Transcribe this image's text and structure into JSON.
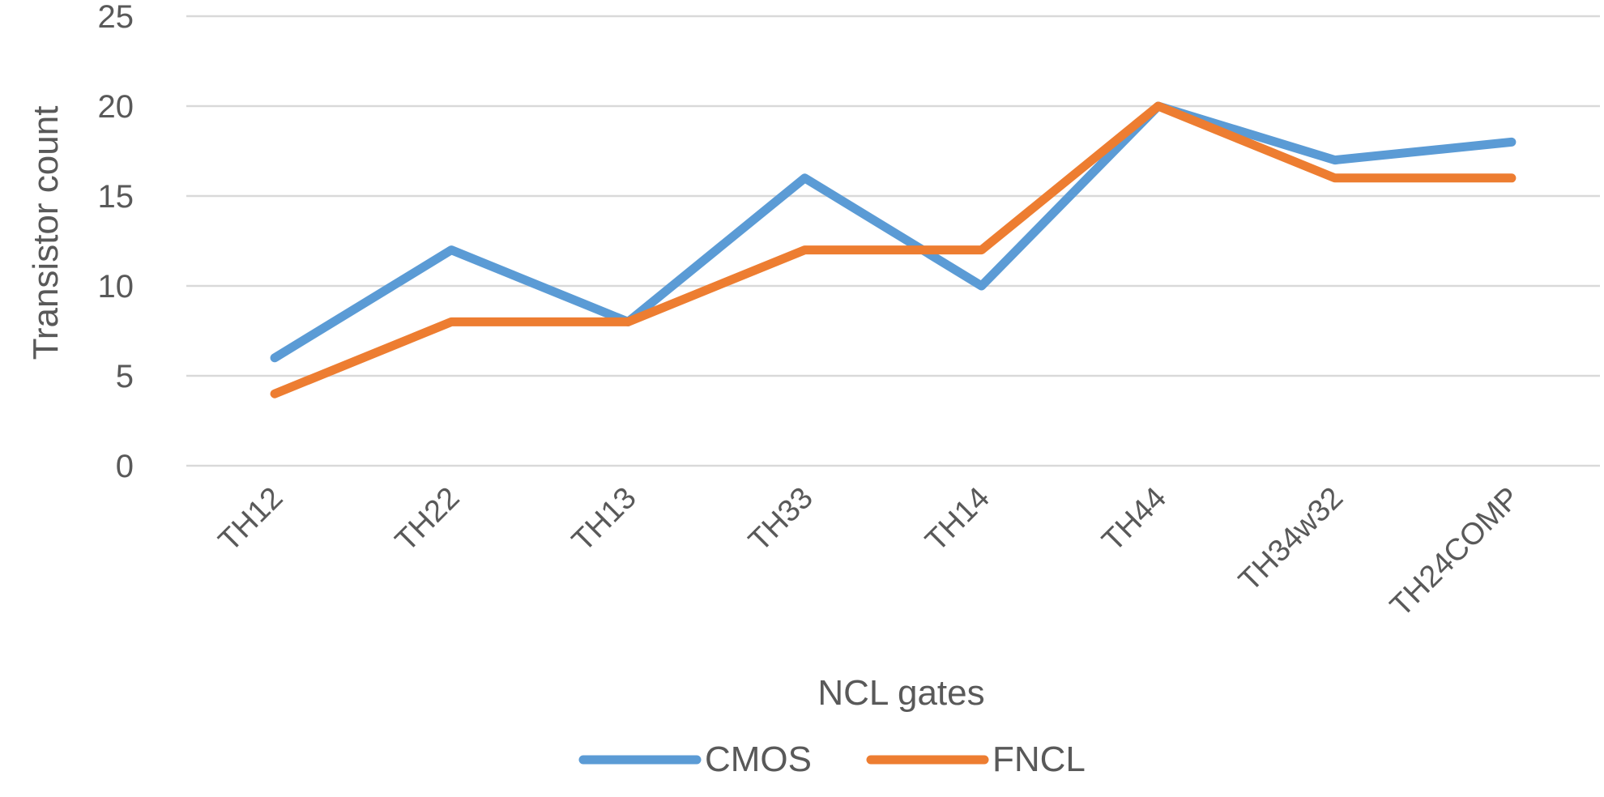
{
  "chart_data": {
    "type": "line",
    "title": "",
    "xlabel": "NCL gates",
    "ylabel": "Transistor count",
    "categories": [
      "TH12",
      "TH22",
      "TH13",
      "TH33",
      "TH14",
      "TH44",
      "TH34w32",
      "TH24COMP"
    ],
    "series": [
      {
        "name": "CMOS",
        "color": "#5b9bd5",
        "values": [
          6,
          12,
          8,
          16,
          10,
          20,
          17,
          18
        ]
      },
      {
        "name": "FNCL",
        "color": "#ed7d31",
        "values": [
          4,
          8,
          8,
          12,
          12,
          20,
          16,
          16
        ]
      }
    ],
    "ylim": [
      0,
      25
    ],
    "yticks": [
      0,
      5,
      10,
      15,
      20,
      25
    ],
    "grid": true,
    "legend_position": "bottom"
  }
}
